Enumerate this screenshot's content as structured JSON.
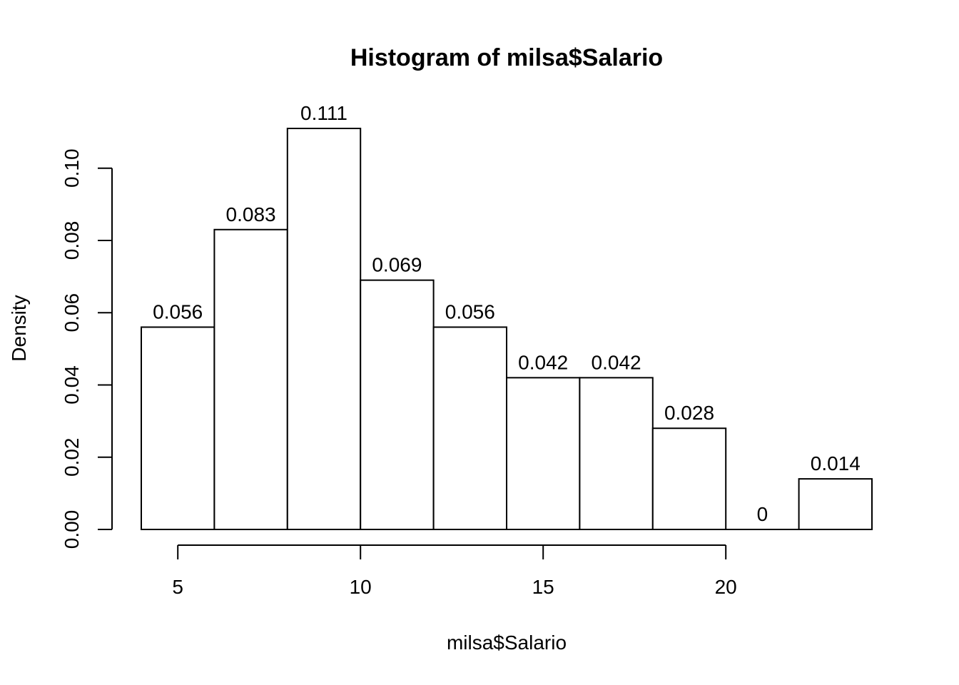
{
  "chart_data": {
    "type": "bar",
    "title": "Histogram of milsa$Salario",
    "xlabel": "milsa$Salario",
    "ylabel": "Density",
    "breaks": [
      4,
      6,
      8,
      10,
      12,
      14,
      16,
      18,
      20,
      22,
      24
    ],
    "values": [
      0.056,
      0.083,
      0.111,
      0.069,
      0.056,
      0.042,
      0.042,
      0.028,
      0,
      0.014
    ],
    "labels": [
      "0.056",
      "0.083",
      "0.111",
      "0.069",
      "0.056",
      "0.042",
      "0.042",
      "0.028",
      "0",
      "0.014"
    ],
    "x_ticks": [
      5,
      10,
      15,
      20
    ],
    "x_tick_labels": [
      "5",
      "10",
      "15",
      "20"
    ],
    "y_ticks": [
      0,
      0.02,
      0.04,
      0.06,
      0.08,
      0.1
    ],
    "y_tick_labels": [
      "0.00",
      "0.02",
      "0.04",
      "0.06",
      "0.08",
      "0.10"
    ],
    "xlim": [
      4,
      24
    ],
    "ylim": [
      0,
      0.111
    ],
    "grid": false
  }
}
